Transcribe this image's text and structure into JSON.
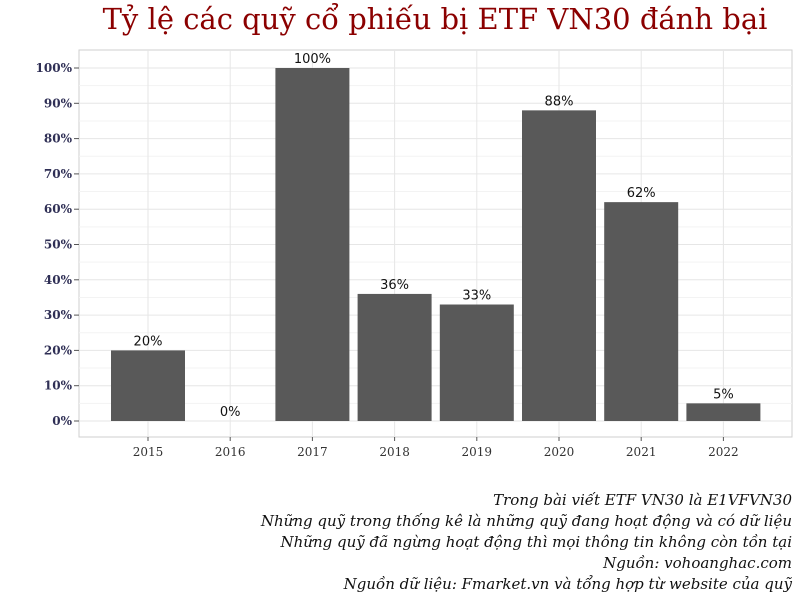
{
  "chart_data": {
    "type": "bar",
    "title": "Tỷ lệ các quỹ cổ phiếu bị ETF VN30 đánh bại",
    "xlabel": "",
    "ylabel": "",
    "categories": [
      "2015",
      "2016",
      "2017",
      "2018",
      "2019",
      "2020",
      "2021",
      "2022"
    ],
    "values": [
      20,
      0,
      100,
      36,
      33,
      88,
      62,
      5
    ],
    "data_labels": [
      "20%",
      "0%",
      "100%",
      "36%",
      "33%",
      "88%",
      "62%",
      "5%"
    ],
    "ylim": [
      0,
      100
    ],
    "y_ticks": [
      "0%",
      "10%",
      "20%",
      "30%",
      "40%",
      "50%",
      "60%",
      "70%",
      "80%",
      "90%",
      "100%"
    ],
    "grid": true,
    "legend": "none",
    "bar_color": "#595959",
    "title_color": "#8b0000"
  },
  "caption": [
    "Trong bài viết ETF VN30 là E1VFVN30",
    "Những quỹ trong thống kê là những quỹ đang hoạt động và có dữ liệu",
    "Những quỹ đã ngừng hoạt động thì mọi thông tin không còn tồn tại",
    "Nguồn: vohoanghac.com",
    "Nguồn dữ liệu: Fmarket.vn và tổng hợp từ website của quỹ"
  ]
}
